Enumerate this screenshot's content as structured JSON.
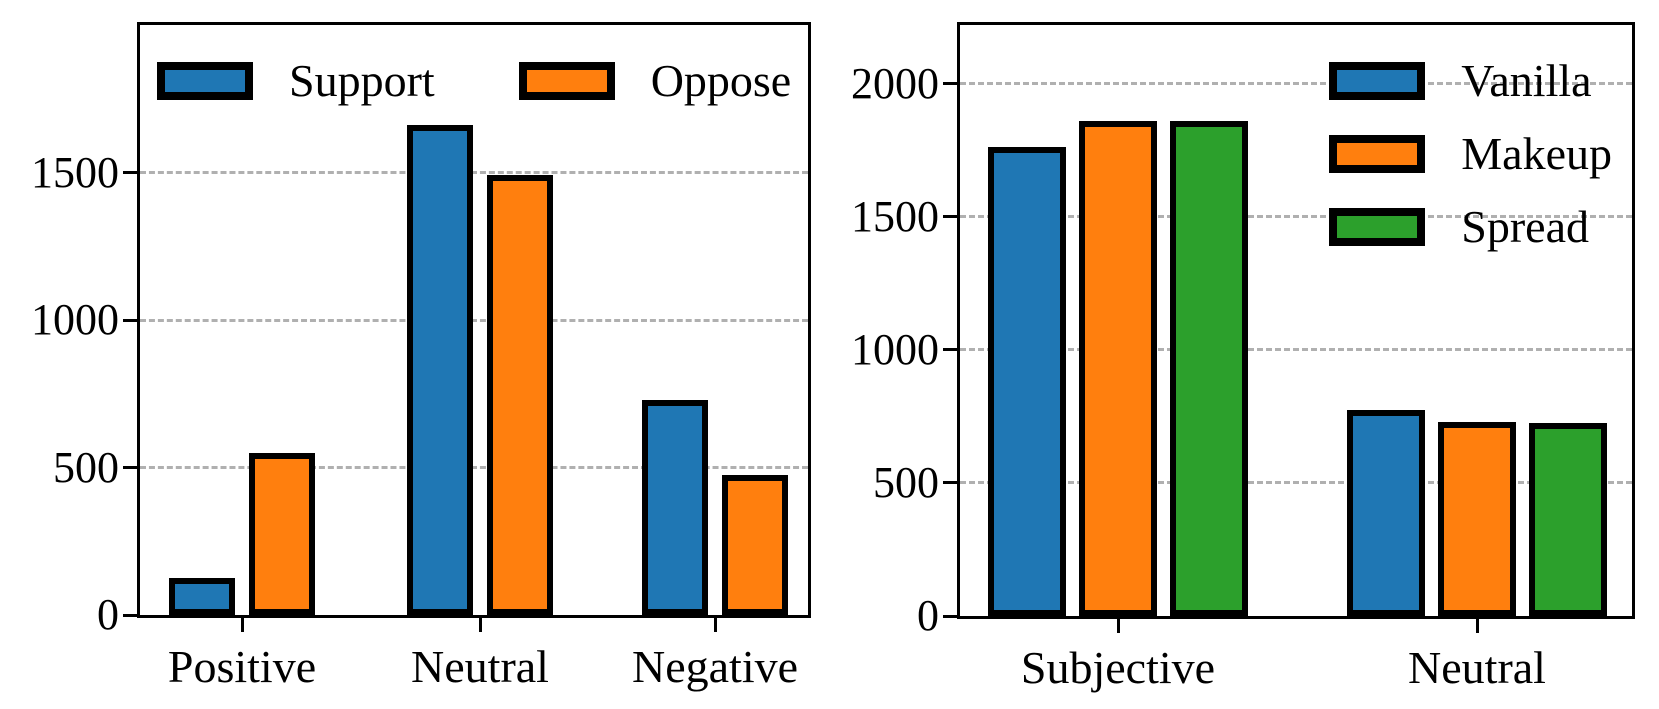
{
  "figure": {
    "background": "#ffffff",
    "text_color": "#000000",
    "grid_color": "#b0b0b0",
    "bar_edge_color": "#000000"
  },
  "chart_data": [
    {
      "type": "bar",
      "title": "",
      "xlabel": "",
      "ylabel": "",
      "categories": [
        "Positive",
        "Neutral",
        "Negative"
      ],
      "series": [
        {
          "name": "Support",
          "color": "#1f77b4",
          "values": [
            125,
            1660,
            730
          ]
        },
        {
          "name": "Oppose",
          "color": "#ff7f0e",
          "values": [
            550,
            1490,
            475
          ]
        }
      ],
      "yticks": [
        0,
        500,
        1000,
        1500
      ],
      "ylim": [
        0,
        2000
      ],
      "grid": "horizontal-dashed",
      "legend_position": "upper-left-row"
    },
    {
      "type": "bar",
      "title": "",
      "xlabel": "",
      "ylabel": "",
      "categories": [
        "Subjective",
        "Neutral"
      ],
      "series": [
        {
          "name": "Vanilla",
          "color": "#1f77b4",
          "values": [
            1760,
            775
          ]
        },
        {
          "name": "Makeup",
          "color": "#ff7f0e",
          "values": [
            1860,
            730
          ]
        },
        {
          "name": "Spread",
          "color": "#2ca02c",
          "values": [
            1860,
            725
          ]
        }
      ],
      "yticks": [
        0,
        500,
        1000,
        1500,
        2000
      ],
      "ylim": [
        0,
        2220
      ],
      "grid": "horizontal-dashed",
      "legend_position": "upper-right-column"
    }
  ]
}
